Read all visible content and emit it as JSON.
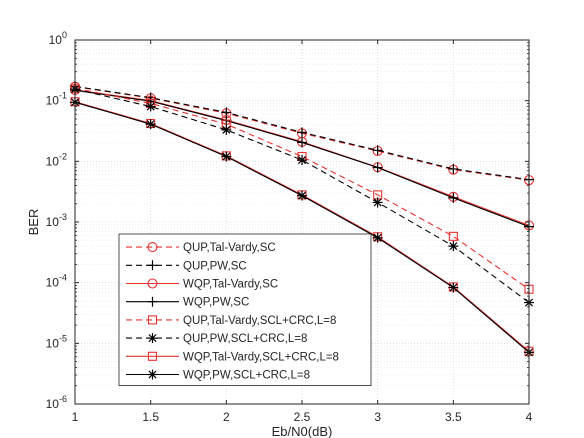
{
  "chart_data": {
    "type": "line",
    "xlabel": "Eb/N0(dB)",
    "ylabel": "BER",
    "xlim": [
      1,
      4
    ],
    "ylim_log10": [
      -6,
      0
    ],
    "y_scale": "log",
    "grid": true,
    "minor_grid": true,
    "legend_position": "bottom-left",
    "x_ticks": [
      "1",
      "1.5",
      "2",
      "2.5",
      "3",
      "3.5",
      "4"
    ],
    "y_ticks": [
      {
        "base": "10",
        "exp": "0"
      },
      {
        "base": "10",
        "exp": "-1"
      },
      {
        "base": "10",
        "exp": "-2"
      },
      {
        "base": "10",
        "exp": "-3"
      },
      {
        "base": "10",
        "exp": "-4"
      },
      {
        "base": "10",
        "exp": "-5"
      },
      {
        "base": "10",
        "exp": "-6"
      }
    ],
    "x": [
      1,
      1.5,
      2,
      2.5,
      3,
      3.5,
      4
    ],
    "series": [
      {
        "name": "QUP,Tal-Vardy,SC",
        "color": "#e8312e",
        "dash": "dashed",
        "marker": "circle",
        "values": [
          0.17,
          0.11,
          0.062,
          0.029,
          0.0148,
          0.0073,
          0.0049
        ]
      },
      {
        "name": "QUP,PW,SC",
        "color": "#000000",
        "dash": "dashed",
        "marker": "plus",
        "values": [
          0.172,
          0.112,
          0.064,
          0.03,
          0.0152,
          0.0075,
          0.005
        ]
      },
      {
        "name": "WQP,Tal-Vardy,SC",
        "color": "#e8312e",
        "dash": "solid",
        "marker": "circle",
        "values": [
          0.15,
          0.1,
          0.048,
          0.021,
          0.008,
          0.0026,
          0.00088
        ]
      },
      {
        "name": "WQP,PW,SC",
        "color": "#000000",
        "dash": "solid",
        "marker": "plus",
        "values": [
          0.148,
          0.098,
          0.047,
          0.0205,
          0.0079,
          0.0025,
          0.00084
        ]
      },
      {
        "name": "QUP,Tal-Vardy,SCL+CRC,L=8",
        "color": "#e8312e",
        "dash": "dashed",
        "marker": "square",
        "values": [
          0.16,
          0.09,
          0.041,
          0.012,
          0.0028,
          0.00058,
          7.8e-05
        ]
      },
      {
        "name": "QUP,PW,SCL+CRC,L=8",
        "color": "#000000",
        "dash": "dashed",
        "marker": "asterisk",
        "values": [
          0.155,
          0.08,
          0.033,
          0.0105,
          0.0021,
          0.0004,
          4.7e-05
        ]
      },
      {
        "name": "WQP,Tal-Vardy,SCL+CRC,L=8",
        "color": "#e8312e",
        "dash": "solid",
        "marker": "square",
        "values": [
          0.096,
          0.042,
          0.0123,
          0.0028,
          0.00057,
          8.5e-05,
          7.4e-06
        ]
      },
      {
        "name": "WQP,PW,SCL+CRC,L=8",
        "color": "#000000",
        "dash": "solid",
        "marker": "asterisk",
        "values": [
          0.094,
          0.041,
          0.012,
          0.00272,
          0.00055,
          8.3e-05,
          7.1e-06
        ]
      }
    ]
  }
}
